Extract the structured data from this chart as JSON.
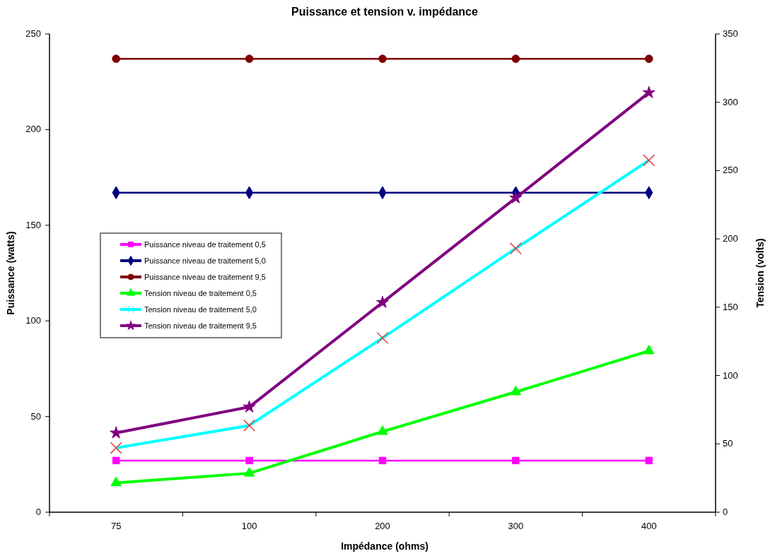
{
  "chart_data": {
    "type": "line",
    "title": "Puissance et tension v. impédance",
    "xlabel": "Impédance (ohms)",
    "ylabel": "Puissance (watts)",
    "y2label": "Tension (volts)",
    "categories": [
      "75",
      "100",
      "200",
      "300",
      "400"
    ],
    "ylim": [
      0,
      250
    ],
    "yticks": [
      0,
      50,
      100,
      150,
      200,
      250
    ],
    "y2lim": [
      0,
      350
    ],
    "y2ticks": [
      0,
      50,
      100,
      150,
      200,
      250,
      300,
      350
    ],
    "grid": false,
    "legend": "left",
    "series": [
      {
        "name": "Puissance niveau de traitement 0,5",
        "color": "#ff00ff",
        "marker": "square",
        "values": [
          27,
          27,
          27,
          27,
          27
        ]
      },
      {
        "name": "Puissance niveau de traitement 5,0",
        "color": "#000080",
        "marker": "diamond",
        "values": [
          167,
          167,
          167,
          167,
          167
        ]
      },
      {
        "name": "Puissance niveau de traitement 9,5",
        "color": "#800000",
        "marker": "circle",
        "values": [
          237,
          237,
          237,
          237,
          237
        ]
      },
      {
        "name": "Tension niveau de traitement 0,5",
        "color": "#00ff00",
        "marker": "triangle",
        "axis": "y2",
        "values": [
          21.5,
          28.5,
          59,
          88,
          118
        ]
      },
      {
        "name": "Tension niveau de traitement 5,0",
        "color": "#00ffff",
        "marker": "cross",
        "axis": "y2",
        "values": [
          47,
          63.5,
          127.5,
          193,
          257.5
        ]
      },
      {
        "name": "Tension niveau de traitement 9,5",
        "color": "#800080",
        "marker": "star",
        "axis": "y2",
        "values": [
          58,
          77,
          153.5,
          230,
          307
        ]
      }
    ]
  }
}
